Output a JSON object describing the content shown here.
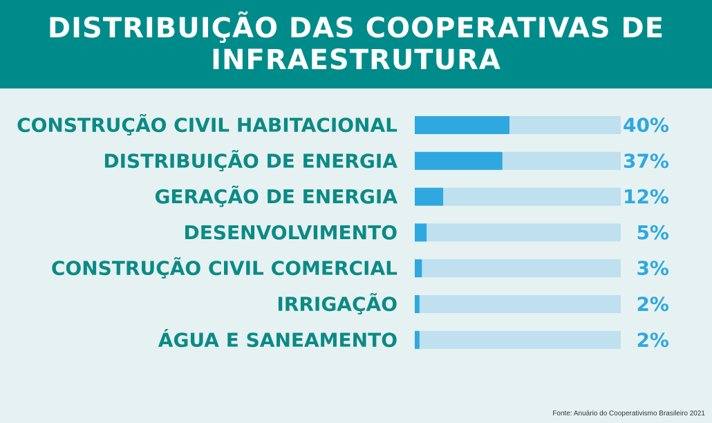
{
  "title_lines": [
    "DISTRIBUIÇÃO DAS COOPERATIVAS DE",
    "INFRAESTRUTURA"
  ],
  "source": "Fonte: Anuário do Cooperativismo Brasileiro 2021",
  "colors": {
    "header_bg": "#008b8b",
    "background": "#e6f2f2",
    "bar_fill": "#2fa8e0",
    "bar_track": "#bfe0ee",
    "category_text": "#0b8a86",
    "value_text": "#2fa8e0"
  },
  "chart_data": {
    "type": "bar",
    "orientation": "horizontal",
    "title": "DISTRIBUIÇÃO DAS COOPERATIVAS DE INFRAESTRUTURA",
    "categories": [
      "CONSTRUÇÃO CIVIL HABITACIONAL",
      "DISTRIBUIÇÃO DE ENERGIA",
      "GERAÇÃO DE ENERGIA",
      "DESENVOLVIMENTO",
      "CONSTRUÇÃO CIVIL COMERCIAL",
      "IRRIGAÇÃO",
      "ÁGUA E SANEAMENTO"
    ],
    "values": [
      40,
      37,
      12,
      5,
      3,
      2,
      2
    ],
    "value_labels": [
      "40%",
      "37%",
      "12%",
      "5%",
      "3%",
      "2%",
      "2%"
    ],
    "unit": "%",
    "xlim": [
      0,
      87
    ],
    "grid": false,
    "legend": "none"
  }
}
